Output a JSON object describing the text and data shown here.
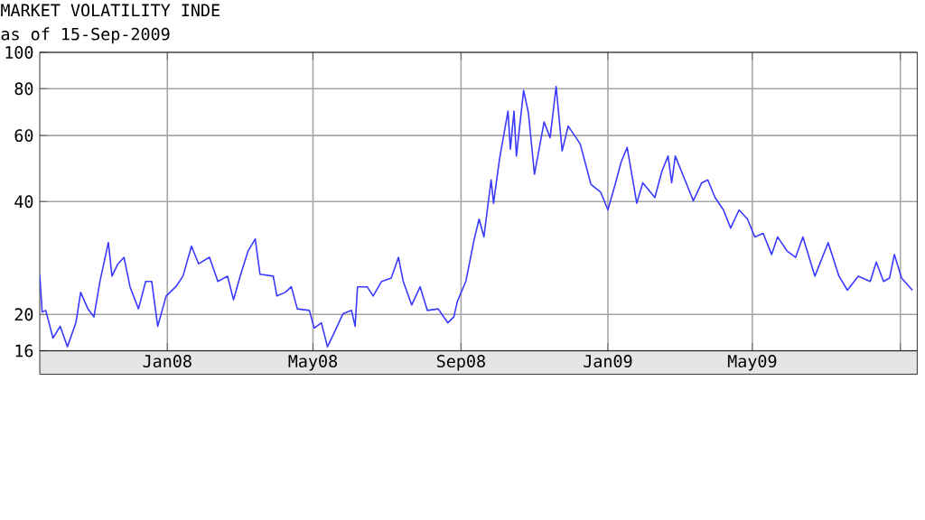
{
  "chart_data": {
    "type": "line",
    "title": "MARKET VOLATILITY INDE",
    "subtitle": "as of 15-Sep-2009",
    "x": [
      "2007-09-17",
      "2007-09-19",
      "2007-09-22",
      "2007-09-28",
      "2007-10-04",
      "2007-10-10",
      "2007-10-17",
      "2007-10-21",
      "2007-10-27",
      "2007-11-01",
      "2007-11-06",
      "2007-11-13",
      "2007-11-16",
      "2007-11-21",
      "2007-11-26",
      "2007-12-01",
      "2007-12-08",
      "2007-12-14",
      "2007-12-19",
      "2007-12-24",
      "2007-12-31",
      "2008-01-08",
      "2008-01-14",
      "2008-01-21",
      "2008-01-27",
      "2008-02-05",
      "2008-02-12",
      "2008-02-20",
      "2008-02-25",
      "2008-03-02",
      "2008-03-08",
      "2008-03-14",
      "2008-03-18",
      "2008-03-29",
      "2008-04-01",
      "2008-04-08",
      "2008-04-13",
      "2008-04-18",
      "2008-04-28",
      "2008-05-02",
      "2008-05-08",
      "2008-05-13",
      "2008-05-18",
      "2008-05-26",
      "2008-06-02",
      "2008-06-05",
      "2008-06-07",
      "2008-06-15",
      "2008-06-20",
      "2008-06-27",
      "2008-07-05",
      "2008-07-11",
      "2008-07-15",
      "2008-07-22",
      "2008-07-29",
      "2008-08-04",
      "2008-08-13",
      "2008-08-21",
      "2008-08-26",
      "2008-08-29",
      "2008-09-05",
      "2008-09-12",
      "2008-09-16",
      "2008-09-20",
      "2008-09-26",
      "2008-09-28",
      "2008-10-03",
      "2008-10-10",
      "2008-10-12",
      "2008-10-15",
      "2008-10-17",
      "2008-10-23",
      "2008-10-27",
      "2008-11-01",
      "2008-11-09",
      "2008-11-14",
      "2008-11-19",
      "2008-11-24",
      "2008-11-29",
      "2008-12-09",
      "2008-12-18",
      "2008-12-26",
      "2009-01-01",
      "2009-01-07",
      "2009-01-12",
      "2009-01-17",
      "2009-01-25",
      "2009-01-30",
      "2009-02-09",
      "2009-02-15",
      "2009-02-20",
      "2009-02-23",
      "2009-02-26",
      "2009-03-06",
      "2009-03-13",
      "2009-03-20",
      "2009-03-25",
      "2009-03-31",
      "2009-04-07",
      "2009-04-13",
      "2009-04-20",
      "2009-04-27",
      "2009-05-03",
      "2009-05-10",
      "2009-05-17",
      "2009-05-22",
      "2009-05-30",
      "2009-06-06",
      "2009-06-12",
      "2009-06-22",
      "2009-07-03",
      "2009-07-12",
      "2009-07-19",
      "2009-07-28",
      "2009-08-07",
      "2009-08-12",
      "2009-08-18",
      "2009-08-23",
      "2009-08-27",
      "2009-09-02",
      "2009-09-11"
    ],
    "series": [
      {
        "color": "#3a3aff",
        "values": [
          25.5,
          20.3,
          20.5,
          17.3,
          18.6,
          16.4,
          19.0,
          22.9,
          20.7,
          19.7,
          24.5,
          31.1,
          25.3,
          27.3,
          28.4,
          23.7,
          20.7,
          24.5,
          24.5,
          18.6,
          22.4,
          23.7,
          25.3,
          30.4,
          27.3,
          28.4,
          24.5,
          25.3,
          21.9,
          25.6,
          29.5,
          31.8,
          25.6,
          25.3,
          22.4,
          22.9,
          23.7,
          20.7,
          20.5,
          18.4,
          19.0,
          16.4,
          17.7,
          20.1,
          20.5,
          18.6,
          23.7,
          23.7,
          22.4,
          24.5,
          25.0,
          28.4,
          24.5,
          21.2,
          23.7,
          20.5,
          20.7,
          19.0,
          19.7,
          21.7,
          24.5,
          31.8,
          35.9,
          32.2,
          45.7,
          39.6,
          52.0,
          69.7,
          55.2,
          69.7,
          52.9,
          79.2,
          68.9,
          47.3,
          65.2,
          59.2,
          81.1,
          54.6,
          63.6,
          57.0,
          44.4,
          42.4,
          38.0,
          44.4,
          51.0,
          55.8,
          39.6,
          44.9,
          41.0,
          48.3,
          52.9,
          44.9,
          52.9,
          45.7,
          40.2,
          44.9,
          45.7,
          41.0,
          38.0,
          34.0,
          38.0,
          35.9,
          32.2,
          32.9,
          28.9,
          32.2,
          29.5,
          28.4,
          32.2,
          25.3,
          31.1,
          25.3,
          23.2,
          25.3,
          24.5,
          27.6,
          24.5,
          25.0,
          28.9,
          25.0,
          23.2
        ]
      }
    ],
    "xlim": [
      "2007-09-17",
      "2009-09-15"
    ],
    "xticks": [
      {
        "value": "2008-01-01",
        "label": "Jan08"
      },
      {
        "value": "2008-05-01",
        "label": "May08"
      },
      {
        "value": "2008-09-01",
        "label": "Sep08"
      },
      {
        "value": "2009-01-01",
        "label": "Jan09"
      },
      {
        "value": "2009-05-01",
        "label": "May09"
      },
      {
        "value": "2009-09-01",
        "label": null
      }
    ],
    "ylim": [
      16,
      100
    ],
    "yticks": [
      16,
      20,
      40,
      60,
      80,
      100
    ],
    "log": true,
    "grid": true,
    "marker": "none",
    "line_style": "solid"
  }
}
